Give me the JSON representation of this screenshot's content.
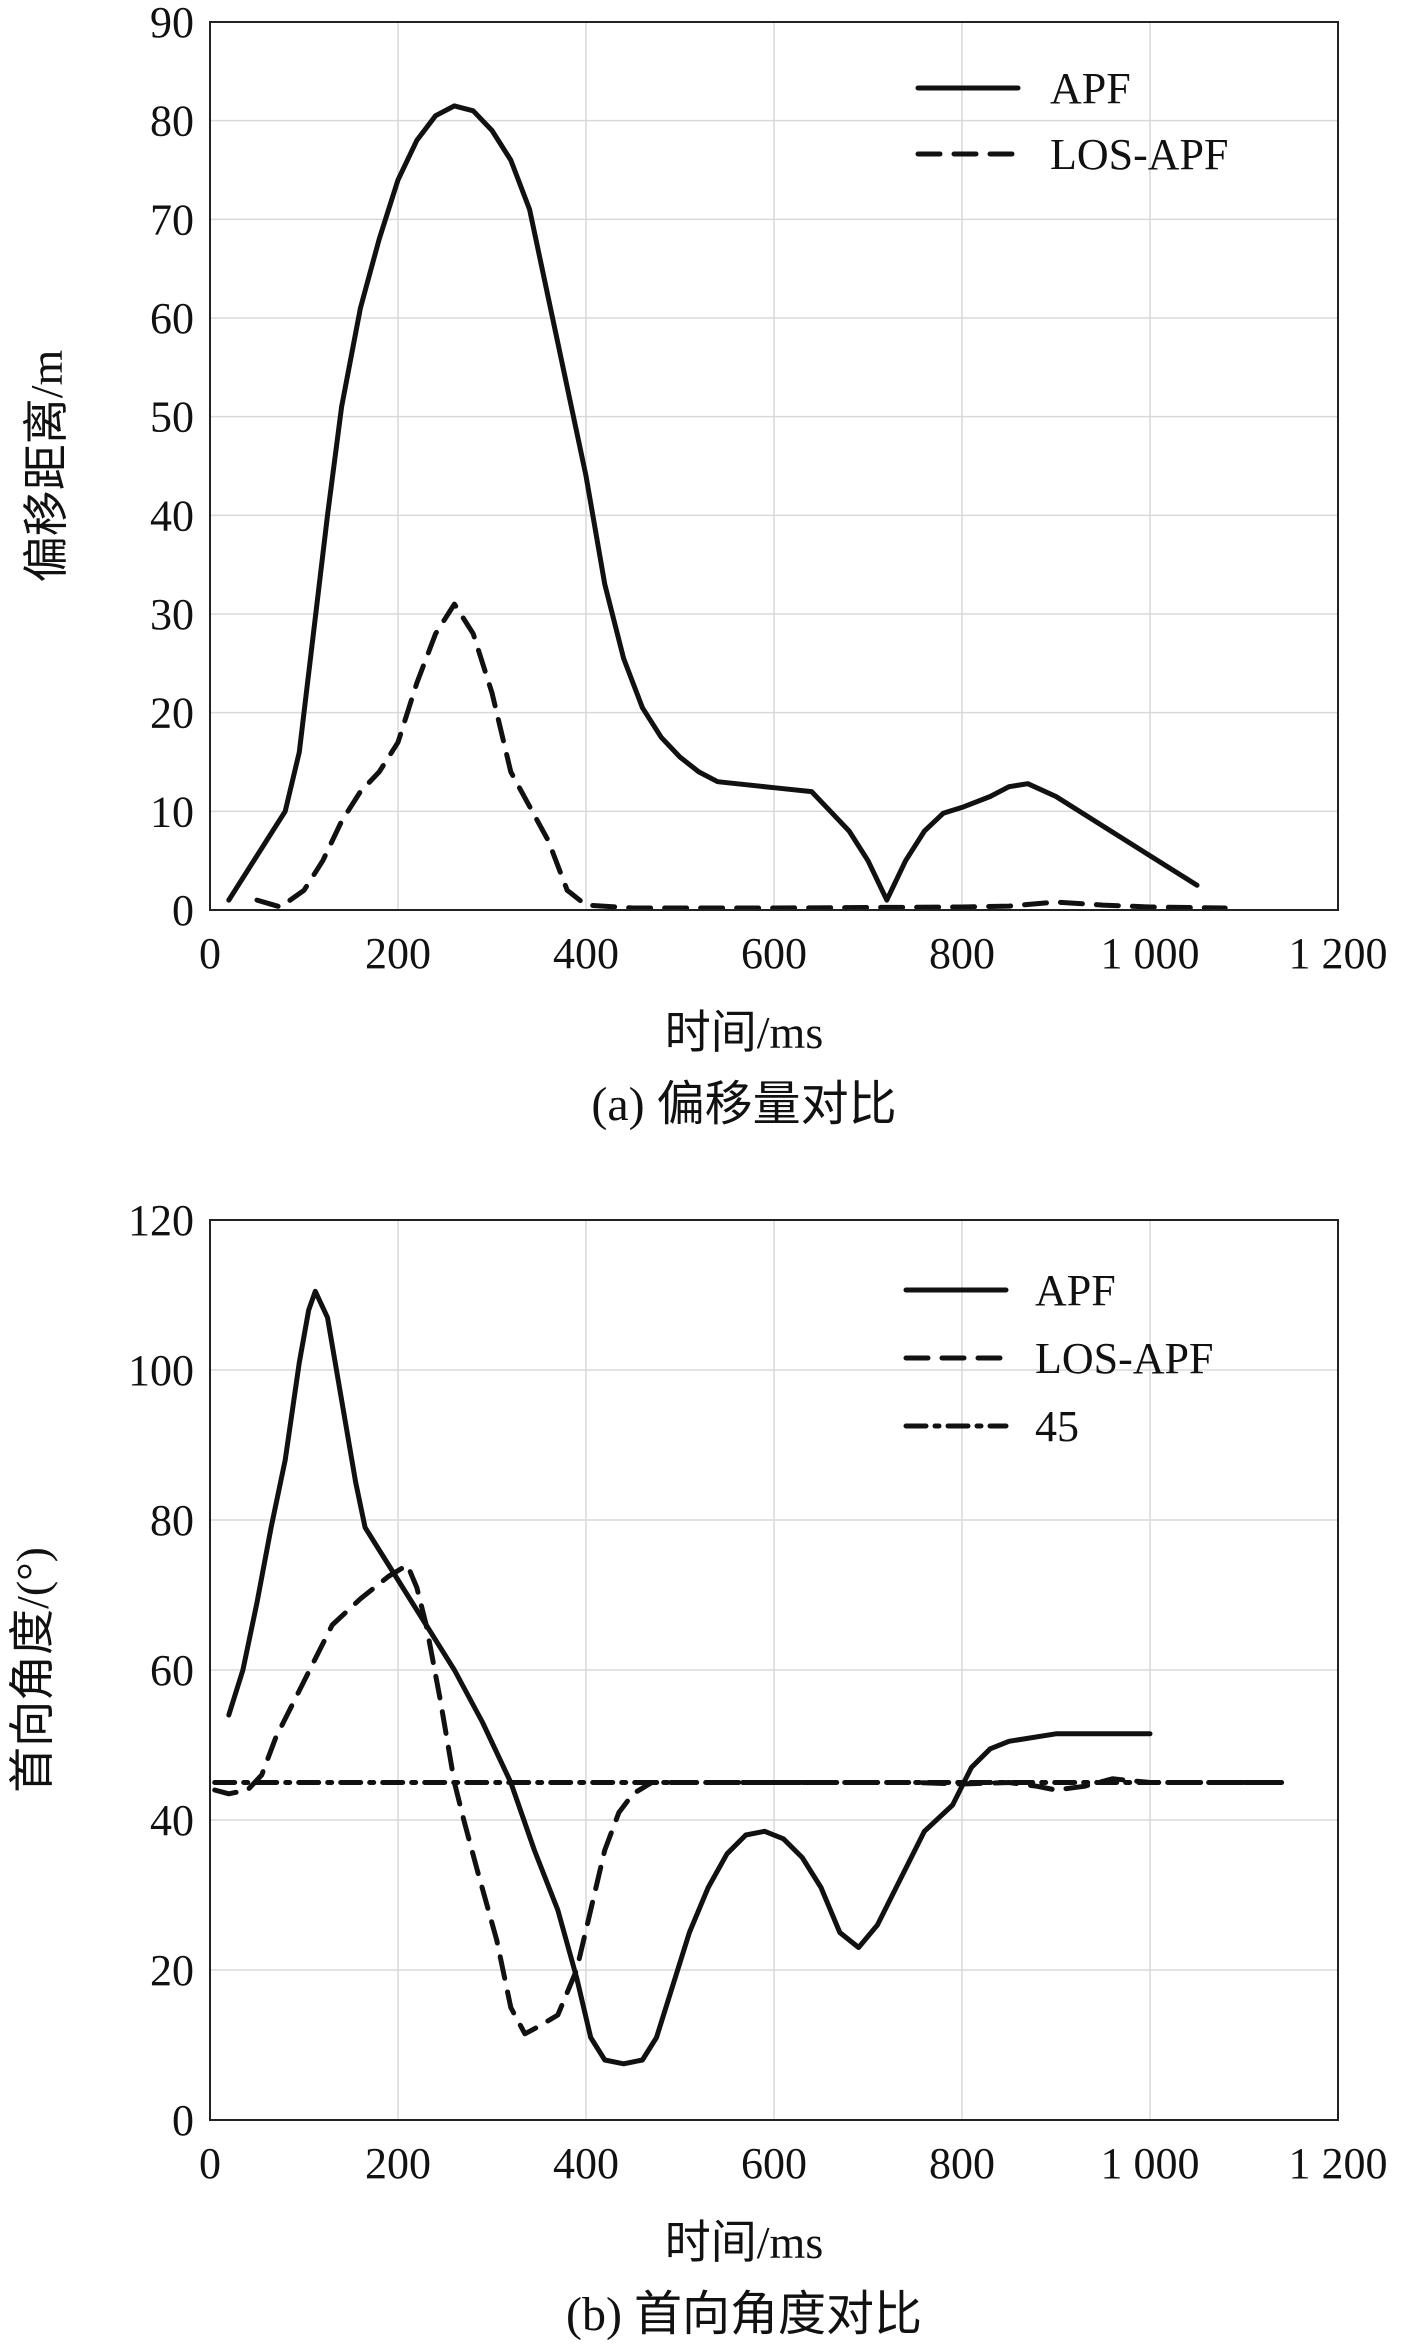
{
  "chart_data": [
    {
      "type": "line",
      "caption": "(a) 偏移量对比",
      "xlabel": "时间/ms",
      "ylabel": "偏移距离/m",
      "xlim": [
        0,
        1200
      ],
      "ylim": [
        0,
        90
      ],
      "xticks": [
        0,
        200,
        400,
        600,
        800,
        1000,
        1200
      ],
      "xtick_labels": [
        "0",
        "200",
        "400",
        "600",
        "800",
        "1 000",
        "1 200"
      ],
      "yticks": [
        0,
        10,
        20,
        30,
        40,
        50,
        60,
        70,
        80,
        90
      ],
      "ytick_labels": [
        "0",
        "10",
        "20",
        "30",
        "40",
        "50",
        "60",
        "70",
        "80",
        "90"
      ],
      "grid": true,
      "legend_position": "top-right",
      "series": [
        {
          "name": "APF",
          "style": "solid",
          "points": [
            [
              20,
              1
            ],
            [
              40,
              4
            ],
            [
              60,
              7
            ],
            [
              80,
              10
            ],
            [
              95,
              16
            ],
            [
              110,
              28
            ],
            [
              125,
              40
            ],
            [
              140,
              51
            ],
            [
              160,
              61
            ],
            [
              180,
              68
            ],
            [
              200,
              74
            ],
            [
              220,
              78
            ],
            [
              240,
              80.5
            ],
            [
              260,
              81.5
            ],
            [
              280,
              81
            ],
            [
              300,
              79
            ],
            [
              320,
              76
            ],
            [
              340,
              71
            ],
            [
              360,
              62
            ],
            [
              380,
              53
            ],
            [
              400,
              44
            ],
            [
              420,
              33
            ],
            [
              440,
              25.5
            ],
            [
              460,
              20.5
            ],
            [
              480,
              17.5
            ],
            [
              500,
              15.5
            ],
            [
              520,
              14
            ],
            [
              540,
              13
            ],
            [
              560,
              12.8
            ],
            [
              600,
              12.4
            ],
            [
              640,
              12
            ],
            [
              660,
              10
            ],
            [
              680,
              8
            ],
            [
              700,
              5
            ],
            [
              720,
              1
            ],
            [
              740,
              5
            ],
            [
              760,
              8
            ],
            [
              780,
              9.8
            ],
            [
              800,
              10.4
            ],
            [
              830,
              11.5
            ],
            [
              850,
              12.5
            ],
            [
              870,
              12.8
            ],
            [
              900,
              11.5
            ],
            [
              950,
              8.5
            ],
            [
              1000,
              5.5
            ],
            [
              1050,
              2.5
            ]
          ]
        },
        {
          "name": "LOS-APF",
          "style": "dashed",
          "points": [
            [
              50,
              1
            ],
            [
              75,
              0.3
            ],
            [
              100,
              2
            ],
            [
              120,
              5
            ],
            [
              140,
              9
            ],
            [
              160,
              12
            ],
            [
              180,
              14
            ],
            [
              200,
              17
            ],
            [
              220,
              23
            ],
            [
              240,
              28
            ],
            [
              260,
              31
            ],
            [
              280,
              28
            ],
            [
              300,
              22
            ],
            [
              320,
              14
            ],
            [
              340,
              10.5
            ],
            [
              360,
              7
            ],
            [
              380,
              2
            ],
            [
              400,
              0.5
            ],
            [
              450,
              0.2
            ],
            [
              600,
              0.2
            ],
            [
              800,
              0.3
            ],
            [
              850,
              0.4
            ],
            [
              900,
              0.8
            ],
            [
              950,
              0.5
            ],
            [
              1000,
              0.3
            ],
            [
              1080,
              0.2
            ]
          ]
        }
      ]
    },
    {
      "type": "line",
      "caption": "(b) 首向角度对比",
      "xlabel": "时间/ms",
      "ylabel": "首向角度/(°)",
      "xlim": [
        0,
        1200
      ],
      "ylim": [
        0,
        120
      ],
      "xticks": [
        0,
        200,
        400,
        600,
        800,
        1000,
        1200
      ],
      "xtick_labels": [
        "0",
        "200",
        "400",
        "600",
        "800",
        "1 000",
        "1 200"
      ],
      "yticks": [
        0,
        20,
        40,
        60,
        80,
        100,
        120
      ],
      "ytick_labels": [
        "0",
        "20",
        "40",
        "60",
        "80",
        "100",
        "120"
      ],
      "grid": true,
      "legend_position": "top-right",
      "series": [
        {
          "name": "APF",
          "style": "solid",
          "points": [
            [
              20,
              54
            ],
            [
              35,
              60
            ],
            [
              50,
              69
            ],
            [
              65,
              79
            ],
            [
              80,
              88
            ],
            [
              95,
              101
            ],
            [
              105,
              108
            ],
            [
              112,
              110.5
            ],
            [
              125,
              107
            ],
            [
              140,
              96
            ],
            [
              155,
              85
            ],
            [
              165,
              79
            ],
            [
              185,
              75
            ],
            [
              205,
              71
            ],
            [
              230,
              66
            ],
            [
              260,
              60
            ],
            [
              290,
              53
            ],
            [
              320,
              45
            ],
            [
              345,
              36
            ],
            [
              370,
              28
            ],
            [
              390,
              19
            ],
            [
              405,
              11
            ],
            [
              420,
              8
            ],
            [
              440,
              7.5
            ],
            [
              460,
              8
            ],
            [
              475,
              11
            ],
            [
              490,
              17
            ],
            [
              510,
              25
            ],
            [
              530,
              31
            ],
            [
              550,
              35.5
            ],
            [
              570,
              38
            ],
            [
              590,
              38.5
            ],
            [
              610,
              37.5
            ],
            [
              630,
              35
            ],
            [
              650,
              31
            ],
            [
              670,
              25
            ],
            [
              690,
              23
            ],
            [
              710,
              26
            ],
            [
              730,
              31
            ],
            [
              760,
              38.5
            ],
            [
              790,
              42
            ],
            [
              810,
              47
            ],
            [
              830,
              49.5
            ],
            [
              850,
              50.5
            ],
            [
              900,
              51.5
            ],
            [
              1000,
              51.5
            ]
          ]
        },
        {
          "name": "LOS-APF",
          "style": "dashed",
          "points": [
            [
              5,
              44
            ],
            [
              20,
              43.5
            ],
            [
              40,
              44
            ],
            [
              55,
              46
            ],
            [
              70,
              51
            ],
            [
              90,
              56
            ],
            [
              110,
              61
            ],
            [
              130,
              66
            ],
            [
              160,
              69.5
            ],
            [
              190,
              72.5
            ],
            [
              210,
              74
            ],
            [
              220,
              71
            ],
            [
              230,
              66
            ],
            [
              245,
              56
            ],
            [
              260,
              45
            ],
            [
              270,
              40
            ],
            [
              285,
              33
            ],
            [
              305,
              24
            ],
            [
              320,
              15
            ],
            [
              335,
              11.5
            ],
            [
              350,
              12.5
            ],
            [
              370,
              14
            ],
            [
              390,
              20
            ],
            [
              405,
              28
            ],
            [
              420,
              36
            ],
            [
              435,
              41
            ],
            [
              450,
              43.5
            ],
            [
              470,
              45
            ],
            [
              500,
              45
            ],
            [
              600,
              45
            ],
            [
              700,
              45
            ],
            [
              750,
              45
            ],
            [
              800,
              44.8
            ],
            [
              850,
              45
            ],
            [
              880,
              44.5
            ],
            [
              900,
              44
            ],
            [
              930,
              44.5
            ],
            [
              960,
              45.5
            ],
            [
              1000,
              45
            ],
            [
              1050,
              45
            ],
            [
              1100,
              45
            ],
            [
              1130,
              45
            ]
          ]
        },
        {
          "name": "45",
          "style": "dashdot",
          "points": [
            [
              5,
              45
            ],
            [
              1140,
              45
            ]
          ]
        }
      ]
    }
  ]
}
